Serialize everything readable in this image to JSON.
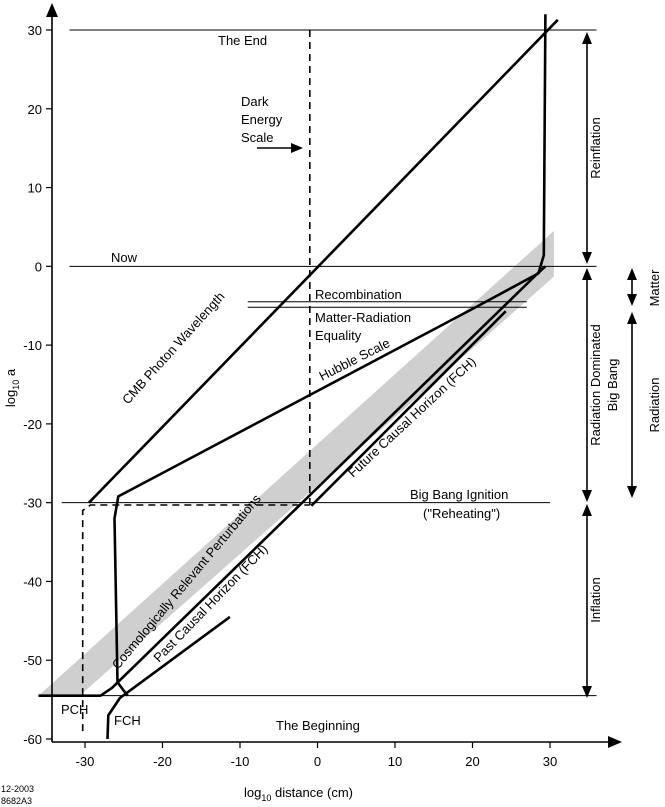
{
  "chart_data": {
    "type": "line",
    "title": "",
    "xlabel_main": "log",
    "xlabel_sub": "10",
    "xlabel_rest": " distance (cm)",
    "ylabel_main": "log",
    "ylabel_sub": "10",
    "ylabel_rest": " a",
    "xlim": [
      -36,
      39
    ],
    "ylim": [
      -60,
      33
    ],
    "xticks": [
      -30,
      -20,
      -10,
      0,
      10,
      20,
      30
    ],
    "yticks": [
      30,
      20,
      10,
      0,
      -10,
      -20,
      -30,
      -40,
      -50,
      -60
    ],
    "epochs": [
      {
        "name": "end",
        "y": 30,
        "x0": -32,
        "x1": 36
      },
      {
        "name": "now",
        "y": 0,
        "x0": -32,
        "x1": 36
      },
      {
        "name": "recombination_a",
        "y": -4.5,
        "x0": -9,
        "x1": 27
      },
      {
        "name": "recombination_b",
        "y": -5.2,
        "x0": -9,
        "x1": 27
      },
      {
        "name": "ignition",
        "y": -30,
        "x0": -33,
        "x1": 30
      },
      {
        "name": "beginning",
        "y": -54.5,
        "x0": -36,
        "x1": 36
      }
    ],
    "series": [
      {
        "name": "CMB Photon Wavelength",
        "style": "solid",
        "points": [
          [
            -29.5,
            -30
          ],
          [
            31,
            31.3
          ]
        ]
      },
      {
        "name": "Hubble Scale",
        "style": "solid",
        "points": [
          [
            -24.5,
            -54.5
          ],
          [
            -25.8,
            -52.8
          ],
          [
            -26.2,
            -32.0
          ],
          [
            -25.7,
            -29.2
          ],
          [
            20.2,
            -5.3
          ],
          [
            28.5,
            -0.9
          ],
          [
            29.2,
            1.4
          ],
          [
            29.4,
            32.0
          ]
        ]
      },
      {
        "name": "Future Causal Horizon (FCH)",
        "style": "solid",
        "points": [
          [
            -36,
            -54.5
          ],
          [
            -28.0,
            -54.5
          ],
          [
            -26.5,
            -53.5
          ],
          [
            28.2,
            -1.1
          ],
          [
            29.4,
            0
          ]
        ]
      },
      {
        "name": "Past Causal Horizon (FCH)",
        "style": "solid",
        "points": [
          [
            -27.1,
            -60
          ],
          [
            -27.0,
            -57.0
          ],
          [
            -25.5,
            -54.8
          ],
          [
            -11.3,
            -44.5
          ]
        ]
      },
      {
        "name": "Past Causal Horizon upper",
        "style": "solid",
        "points": [
          [
            -0.8,
            -30.4
          ],
          [
            24.3,
            -5.7
          ]
        ]
      },
      {
        "name": "PCH",
        "style": "dashed",
        "points": [
          [
            -30.3,
            -59
          ],
          [
            -30.3,
            -31
          ],
          [
            -29.3,
            -30.3
          ],
          [
            -1.0,
            -30.3
          ]
        ]
      },
      {
        "name": "Dark Energy Scale",
        "style": "dashed",
        "points": [
          [
            -1.0,
            30
          ],
          [
            -1.0,
            -30.3
          ]
        ]
      }
    ],
    "band": {
      "name": "Cosmologically Relevant Perturbations",
      "polygon": [
        [
          -36,
          -54.5
        ],
        [
          -30.7,
          -54.5
        ],
        [
          30.5,
          -1.3
        ],
        [
          30.5,
          4.5
        ]
      ]
    },
    "labels": {
      "end": "The End",
      "dark": "Dark",
      "energy": "Energy",
      "scale": "Scale",
      "now": "Now",
      "recombination": "Recombination",
      "mre1": "Matter-Radiation",
      "mre2": "Equality",
      "hubble": "Hubble Scale",
      "cmb": "CMB Photon Wavelength",
      "fch": "Future Causal Horizon (FCH)",
      "crp": "Cosmologically Relevant Perturbations",
      "pch_line": "Past Causal Horizon (FCH)",
      "ignition": "Big Bang Ignition",
      "reheating": "(\"Reheating\")",
      "pch": "PCH",
      "fch_short": "FCH",
      "beginning": "The Beginning",
      "reinflation": "Reinflation",
      "rdbb1": "Radiation Dominated",
      "rdbb2": "Big Bang",
      "inflation": "Inflation",
      "matter": "Matter",
      "radiation": "Radiation",
      "corner1": "12-2003",
      "corner2": "8682A3"
    }
  }
}
